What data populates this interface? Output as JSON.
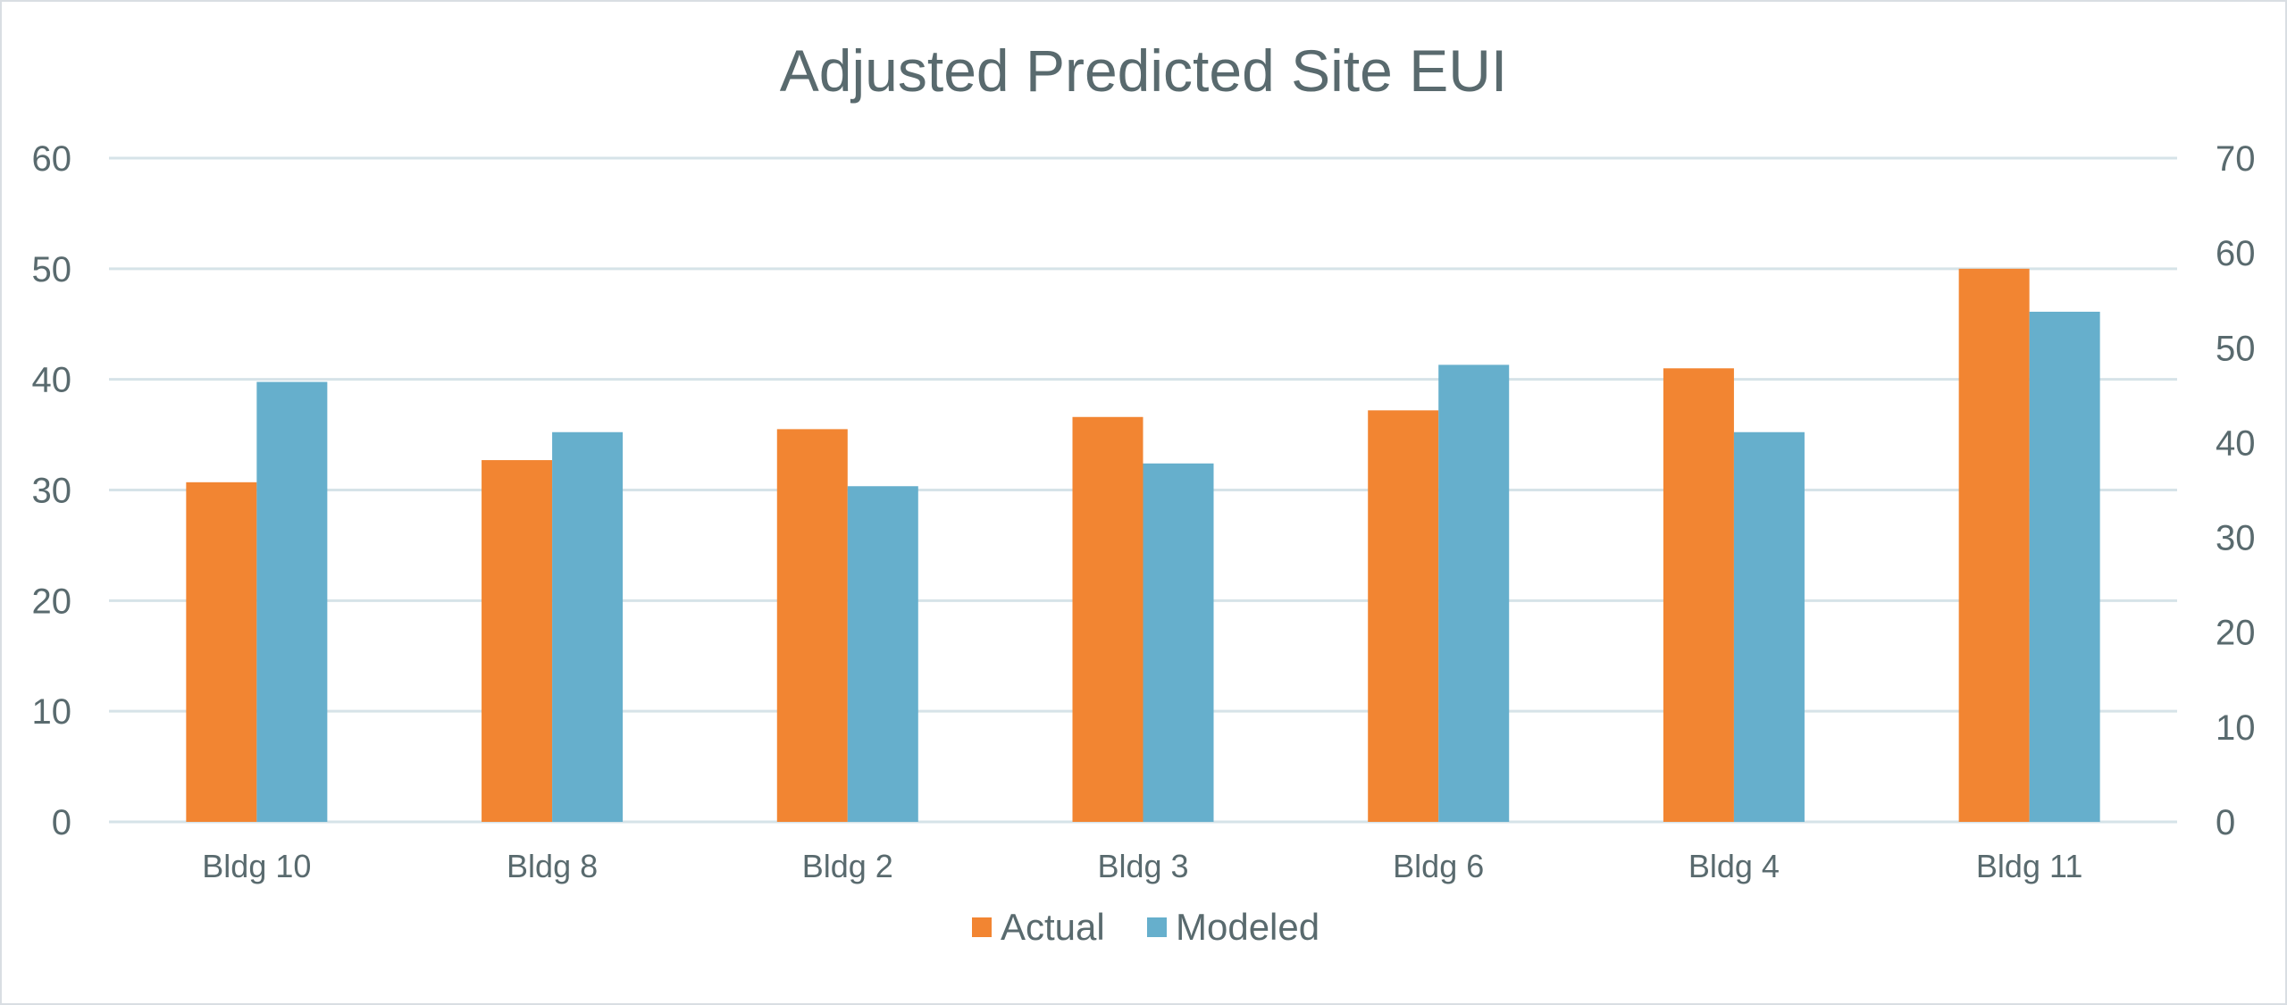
{
  "chart_data": {
    "type": "bar",
    "title": "Adjusted Predicted Site EUI",
    "categories": [
      "Bldg 10",
      "Bldg 8",
      "Bldg 2",
      "Bldg 3",
      "Bldg 6",
      "Bldg 4",
      "Bldg 11"
    ],
    "series": [
      {
        "name": "Actual",
        "color": "#f28532",
        "axis": "left",
        "values": [
          30.7,
          32.7,
          35.5,
          36.6,
          37.2,
          41.0,
          50.0
        ]
      },
      {
        "name": "Modeled",
        "color": "#66afcc",
        "axis": "right",
        "values": [
          46.4,
          41.1,
          35.4,
          37.8,
          48.2,
          41.1,
          53.8
        ]
      }
    ],
    "y_left": {
      "min": 0,
      "max": 60,
      "step": 10,
      "ticks": [
        "0",
        "10",
        "20",
        "30",
        "40",
        "50",
        "60"
      ]
    },
    "y_right": {
      "min": 0,
      "max": 70,
      "step": 10,
      "ticks": [
        "0",
        "10",
        "20",
        "30",
        "40",
        "50",
        "60",
        "70"
      ]
    },
    "grid": true,
    "legend_position": "bottom",
    "colors": {
      "text": "#596a6e",
      "grid": "#d6e3e8",
      "border": "#d9dee3"
    }
  }
}
